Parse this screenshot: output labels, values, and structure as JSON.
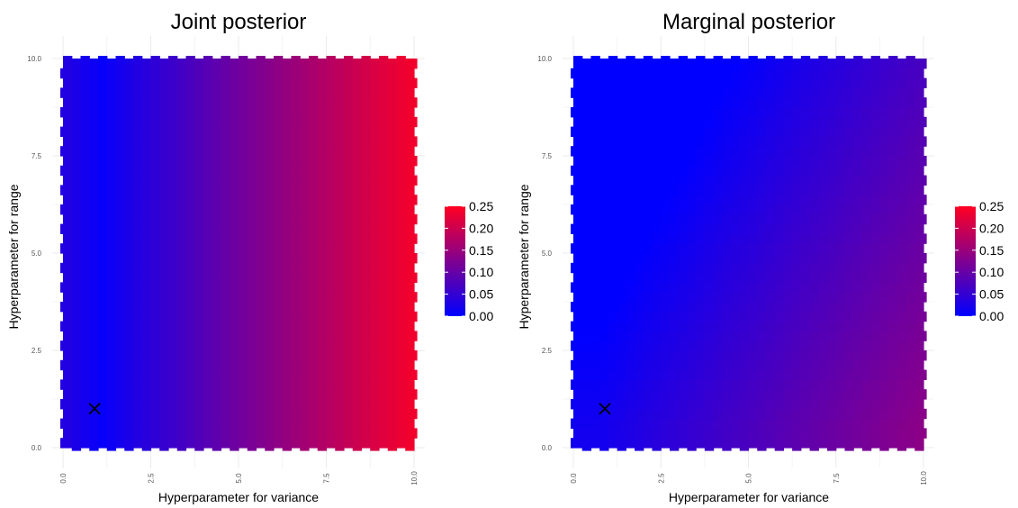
{
  "chart_data": [
    {
      "type": "heatmap",
      "title": "Joint posterior",
      "xlabel": "Hyperparameter for variance",
      "ylabel": "Hyperparameter for range",
      "xlim": [
        0,
        10
      ],
      "ylim": [
        0,
        10
      ],
      "x_ticks": [
        "0.0",
        "2.5",
        "5.0",
        "7.5",
        "10.0"
      ],
      "y_ticks": [
        "0.0",
        "2.5",
        "5.0",
        "7.5",
        "10.0"
      ],
      "grid": true,
      "colorscale": {
        "low": "#0000ff",
        "high": "#ff0022"
      },
      "legend": {
        "position": "right",
        "labels": [
          "0.25",
          "0.20",
          "0.15",
          "0.10",
          "0.05",
          "0.00"
        ],
        "range": [
          0,
          0.25
        ]
      },
      "marker": {
        "symbol": "x",
        "x": 0.9,
        "y": 1.0
      },
      "model": "joint"
    },
    {
      "type": "heatmap",
      "title": "Marginal posterior",
      "xlabel": "Hyperparameter for variance",
      "ylabel": "Hyperparameter for range",
      "xlim": [
        0,
        10
      ],
      "ylim": [
        0,
        10
      ],
      "x_ticks": [
        "0.0",
        "2.5",
        "5.0",
        "7.5",
        "10.0"
      ],
      "y_ticks": [
        "0.0",
        "2.5",
        "5.0",
        "7.5",
        "10.0"
      ],
      "grid": true,
      "colorscale": {
        "low": "#0000ff",
        "high": "#ff0022"
      },
      "legend": {
        "position": "right",
        "labels": [
          "0.25",
          "0.20",
          "0.15",
          "0.10",
          "0.05",
          "0.00"
        ],
        "range": [
          0,
          0.25
        ]
      },
      "marker": {
        "symbol": "x",
        "x": 0.9,
        "y": 1.0
      },
      "model": "marginal"
    }
  ]
}
